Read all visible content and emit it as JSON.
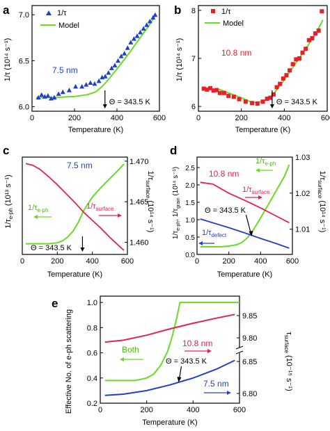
{
  "chart_data": [
    {
      "panel": "a",
      "type": "scatter",
      "xlabel": "Temperature (K)",
      "ylabel": "1/τ (10¹⁴ s⁻¹)",
      "xlim": [
        0,
        600
      ],
      "ylim": [
        5.95,
        7.1
      ],
      "xticks": [
        "0",
        "200",
        "400",
        "600"
      ],
      "yticks": [
        "6.0",
        "6.5",
        "7.0"
      ],
      "annotation": "7.5 nm",
      "theta_label": "Θ = 343.5 K",
      "theta": 343.5,
      "series": [
        {
          "name": "1/τ",
          "kind": "points",
          "marker": "triangle",
          "color": "#1f3fcf",
          "x": [
            30,
            45,
            60,
            75,
            90,
            105,
            125,
            145,
            175,
            205,
            235,
            255,
            275,
            295,
            315,
            330,
            345,
            360,
            375,
            390,
            405,
            420,
            435,
            450,
            465,
            480,
            495,
            510,
            525,
            540,
            555,
            570,
            580
          ],
          "y": [
            6.1,
            6.13,
            6.11,
            6.12,
            6.09,
            6.1,
            6.14,
            6.16,
            6.18,
            6.22,
            6.22,
            6.24,
            6.26,
            6.25,
            6.28,
            6.32,
            6.33,
            6.37,
            6.42,
            6.45,
            6.5,
            6.55,
            6.58,
            6.64,
            6.7,
            6.74,
            6.77,
            6.81,
            6.85,
            6.89,
            6.93,
            6.97,
            7.0
          ]
        },
        {
          "name": "Model",
          "kind": "line",
          "color": "#66dd22",
          "x": [
            20,
            100,
            200,
            260,
            300,
            330,
            350,
            400,
            450,
            500,
            550,
            580
          ],
          "y": [
            6.1,
            6.1,
            6.11,
            6.13,
            6.16,
            6.22,
            6.27,
            6.41,
            6.56,
            6.72,
            6.88,
            6.99
          ]
        }
      ]
    },
    {
      "panel": "b",
      "type": "scatter",
      "xlabel": "Temperature (K)",
      "ylabel": "1/τ (10¹⁴ s⁻¹)",
      "xlim": [
        0,
        600
      ],
      "ylim": [
        5.9,
        8.1
      ],
      "xticks": [
        "0",
        "200",
        "400",
        "600"
      ],
      "yticks": [
        "6",
        "7",
        "8"
      ],
      "annotation": "10.8 nm",
      "theta_label": "Θ = 343.5 K",
      "theta": 343.5,
      "series": [
        {
          "name": "1/τ",
          "kind": "points",
          "marker": "square",
          "color": "#ee1c25",
          "x": [
            25,
            40,
            55,
            70,
            85,
            100,
            120,
            140,
            165,
            190,
            220,
            250,
            275,
            300,
            320,
            335,
            350,
            365,
            380,
            395,
            410,
            425,
            440,
            455,
            470,
            485,
            500,
            515,
            530,
            545,
            560,
            575
          ],
          "y": [
            6.37,
            6.35,
            6.38,
            6.33,
            6.34,
            6.28,
            6.28,
            6.22,
            6.2,
            6.15,
            6.1,
            6.07,
            6.06,
            6.1,
            6.16,
            6.18,
            6.25,
            6.4,
            6.47,
            6.58,
            6.65,
            6.75,
            6.88,
            6.98,
            7.0,
            7.12,
            7.2,
            7.38,
            7.42,
            7.52,
            7.58,
            7.98
          ]
        },
        {
          "name": "Model",
          "kind": "line",
          "color": "#66dd22",
          "x": [
            20,
            100,
            200,
            250,
            300,
            330,
            350,
            400,
            450,
            500,
            550,
            580
          ],
          "y": [
            6.38,
            6.35,
            6.18,
            6.08,
            6.1,
            6.18,
            6.26,
            6.55,
            6.88,
            7.2,
            7.54,
            7.8
          ]
        }
      ]
    },
    {
      "panel": "c",
      "type": "line",
      "xlabel": "Temperature (K)",
      "ylabel_left": "1/τe-ph (10¹³ s⁻¹)",
      "ylabel_right": "1/τsurface (10¹⁴ s⁻¹)",
      "xlim": [
        0,
        600
      ],
      "ylim_right": [
        1.4585,
        1.4705
      ],
      "xticks": [
        "0",
        "200",
        "400",
        "600"
      ],
      "yticks_right": [
        "1.460",
        "1.465",
        "1.470"
      ],
      "annotation": "7.5 nm",
      "theta_label": "Θ = 343.5 K",
      "theta": 343.5,
      "series": [
        {
          "name": "1/τe-ph",
          "axis": "left",
          "color": "#66dd22",
          "x": [
            20,
            150,
            200,
            230,
            260,
            290,
            320,
            350,
            400,
            450,
            500,
            550,
            580
          ],
          "y_frac": [
            0.11,
            0.11,
            0.12,
            0.14,
            0.18,
            0.24,
            0.33,
            0.45,
            0.59,
            0.69,
            0.78,
            0.87,
            0.93
          ]
        },
        {
          "name": "1/τsurface",
          "axis": "right",
          "color": "#e8214a",
          "x": [
            20,
            60,
            100,
            150,
            200,
            250,
            300,
            350,
            400,
            450,
            500,
            550,
            580
          ],
          "y": [
            1.4697,
            1.4695,
            1.469,
            1.4681,
            1.4671,
            1.466,
            1.4649,
            1.4637,
            1.4627,
            1.4617,
            1.4606,
            1.4596,
            1.459
          ]
        }
      ]
    },
    {
      "panel": "d",
      "type": "line",
      "xlabel": "Temperature (K)",
      "ylabel_left": "1/τe-ph, 1/τgrain (10¹⁴ s⁻¹)",
      "ylabel_right": "1/τsurface (10¹⁴ s⁻¹)",
      "xlim": [
        0,
        600
      ],
      "ylim_left": [
        0,
        2.8
      ],
      "ylim_right": [
        1.003,
        1.03
      ],
      "xticks": [
        "0",
        "200",
        "400",
        "600"
      ],
      "yticks_left": [
        "0.0",
        "0.5",
        "1.0",
        "1.5",
        "2.0",
        "2.5"
      ],
      "yticks_right": [
        "1.01",
        "1.02",
        "1.03"
      ],
      "annotation": "10.8 nm",
      "theta_label": "Θ = 343.5 K",
      "theta": 343.5,
      "series": [
        {
          "name": "1/τe-ph",
          "axis": "left",
          "color": "#66dd22",
          "x": [
            20,
            150,
            200,
            250,
            280,
            310,
            340,
            360,
            400,
            450,
            500,
            550,
            580
          ],
          "y": [
            0.22,
            0.22,
            0.24,
            0.28,
            0.34,
            0.45,
            0.6,
            0.75,
            1.05,
            1.45,
            1.85,
            2.25,
            2.58
          ]
        },
        {
          "name": "1/τsurface",
          "axis": "right",
          "color": "#e8214a",
          "x": [
            20,
            100,
            200,
            300,
            400,
            500,
            580
          ],
          "y": [
            1.023,
            1.0225,
            1.02,
            1.018,
            1.0159,
            1.0136,
            1.0118
          ]
        },
        {
          "name": "1/τdefect",
          "axis": "left",
          "color": "#1f3fcf",
          "x": [
            20,
            100,
            200,
            300,
            400,
            500,
            580
          ],
          "y": [
            1.02,
            0.91,
            0.77,
            0.62,
            0.46,
            0.31,
            0.18
          ]
        }
      ]
    },
    {
      "panel": "e",
      "type": "line",
      "xlabel": "Temperature (K)",
      "ylabel_left": "Effective No. of e-ph scattering",
      "ylabel_right": "τsurface (10⁻¹⁵ s⁻¹)",
      "xlim": [
        0,
        600
      ],
      "ylim_left": [
        0.2,
        1.05
      ],
      "xticks": [
        "0",
        "200",
        "400",
        "600"
      ],
      "yticks_left": [
        "0.2",
        "0.4",
        "0.6",
        "0.8",
        "1.0"
      ],
      "yticks_right_upper": [
        "9.80",
        "9.85"
      ],
      "yticks_right_lower": [
        "6.80",
        "6.85"
      ],
      "label_both": "Both",
      "label_10": "10.8 nm",
      "label_7": "7.5 nm",
      "theta_label": "Θ = 343.5 K",
      "theta": 343.5,
      "series": [
        {
          "name": "Both",
          "axis": "left",
          "color": "#66dd22",
          "x": [
            20,
            150,
            200,
            230,
            260,
            290,
            310,
            330,
            343.5,
            600
          ],
          "y": [
            0.38,
            0.38,
            0.4,
            0.43,
            0.5,
            0.61,
            0.73,
            0.88,
            1.0,
            1.0
          ]
        },
        {
          "name": "10.8 nm",
          "axis": "left",
          "color": "#e8214a",
          "x": [
            20,
            100,
            200,
            300,
            400,
            500,
            580
          ],
          "y": [
            0.685,
            0.7,
            0.74,
            0.79,
            0.835,
            0.875,
            0.905
          ]
        },
        {
          "name": "7.5 nm",
          "axis": "left",
          "color": "#1f3fcf",
          "x": [
            20,
            100,
            200,
            300,
            400,
            500,
            580
          ],
          "y": [
            0.262,
            0.272,
            0.3,
            0.345,
            0.4,
            0.47,
            0.54
          ]
        }
      ]
    }
  ],
  "text": {
    "panel_a": "a",
    "panel_b": "b",
    "panel_c": "c",
    "panel_d": "d",
    "panel_e": "e",
    "legend_a_data": "1/τ",
    "legend_a_model": "Model",
    "legend_b_data": "1/τ",
    "legend_b_model": "Model",
    "c_eph": "1/τ",
    "c_eph_sub": "e-ph",
    "c_surf": "1/τ",
    "c_surf_sub": "surface",
    "d_eph": "1/τ",
    "d_eph_sub": "e-ph",
    "d_surf": "1/τ",
    "d_surf_sub": "surface",
    "d_defect": "1/τ",
    "d_defect_sub": "defect",
    "c_ylabel_left": "1/τ",
    "c_ylabel_left_sub": "e-ph",
    "c_ylabel_left_units": " (10¹³ s⁻¹)",
    "c_ylabel_right": "1/τ",
    "c_ylabel_right_sub": "surface",
    "c_ylabel_right_units": " (10¹⁴ s⁻¹)",
    "d_ylabel_left": "1/τ",
    "d_ylabel_left_sub": "e-ph",
    "d_ylabel_left_mid": ", 1/τ",
    "d_ylabel_left_sub2": "grain",
    "d_ylabel_left_units": " (10¹⁴ s⁻¹)",
    "d_ylabel_right": "1/τ",
    "d_ylabel_right_sub": "surface",
    "d_ylabel_right_units": " (10¹⁴ s⁻¹)",
    "e_ylabel_right": "τ",
    "e_ylabel_right_sub": "surface",
    "e_ylabel_right_units": " (10⁻¹⁵ s⁻¹)"
  }
}
